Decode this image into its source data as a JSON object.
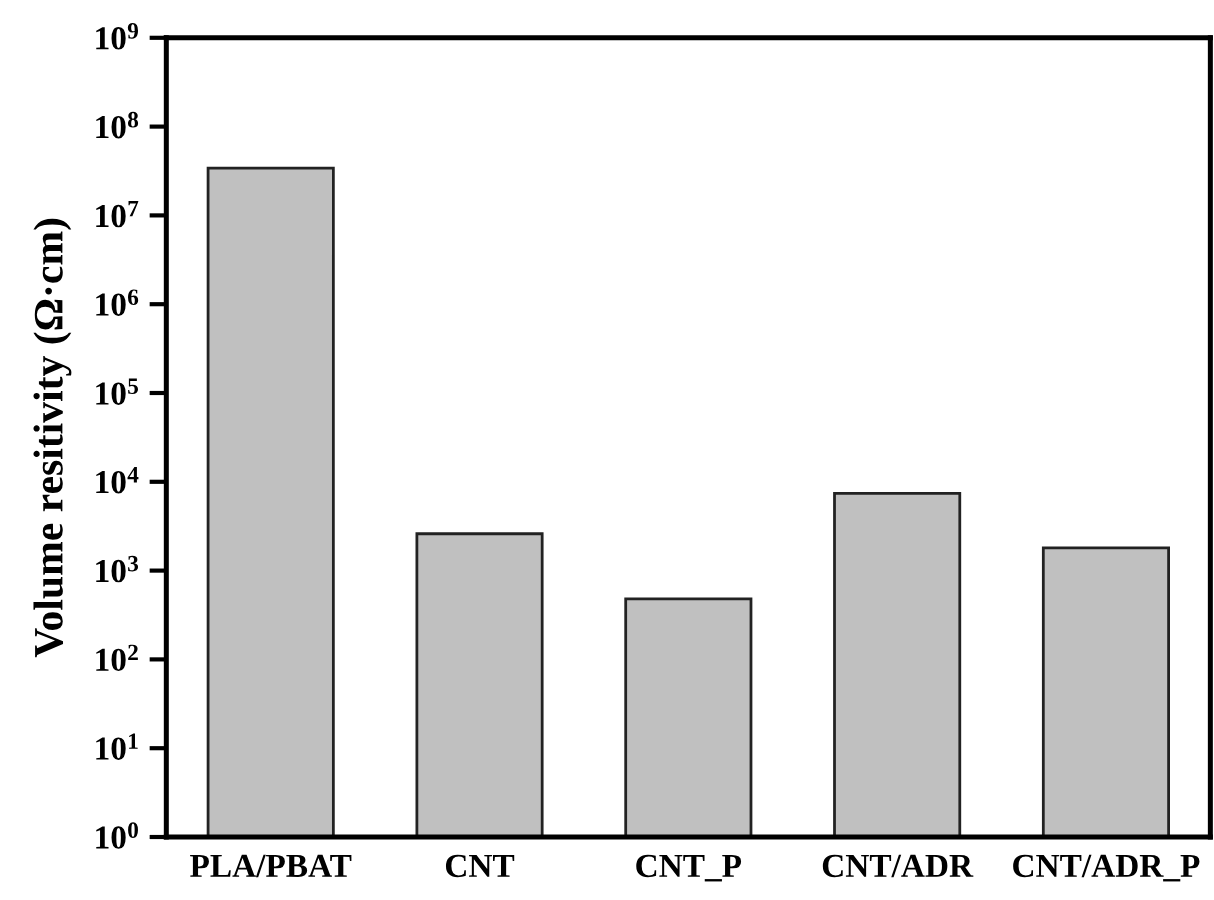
{
  "chart_data": {
    "type": "bar",
    "ylabel": "Volume resitivity (Ω·cm)",
    "categories": [
      "PLA/PBAT",
      "CNT",
      "CNT_P",
      "CNT/ADR",
      "CNT/ADR_P"
    ],
    "values": [
      34000000.0,
      2600.0,
      480.0,
      7400.0,
      1800.0
    ],
    "color": "#c0c0c0",
    "log": true,
    "ylim": [
      1,
      1000000000.0
    ],
    "yticks": [
      {
        "value": 1,
        "label": "10$^{0}$"
      },
      {
        "value": 10,
        "label": "10$^{1}$"
      },
      {
        "value": 100,
        "label": "10$^{2}$"
      },
      {
        "value": 1000,
        "label": "10$^{3}$"
      },
      {
        "value": 10000,
        "label": "10$^{4}$"
      },
      {
        "value": 100000,
        "label": "10$^{5}$"
      },
      {
        "value": 1000000,
        "label": "10$^{6}$"
      },
      {
        "value": 10000000,
        "label": "10$^{7}$"
      },
      {
        "value": 100000000,
        "label": "10$^{8}$"
      },
      {
        "value": 1000000000,
        "label": "10$^{9}$"
      }
    ],
    "grid": false,
    "legend": false
  }
}
